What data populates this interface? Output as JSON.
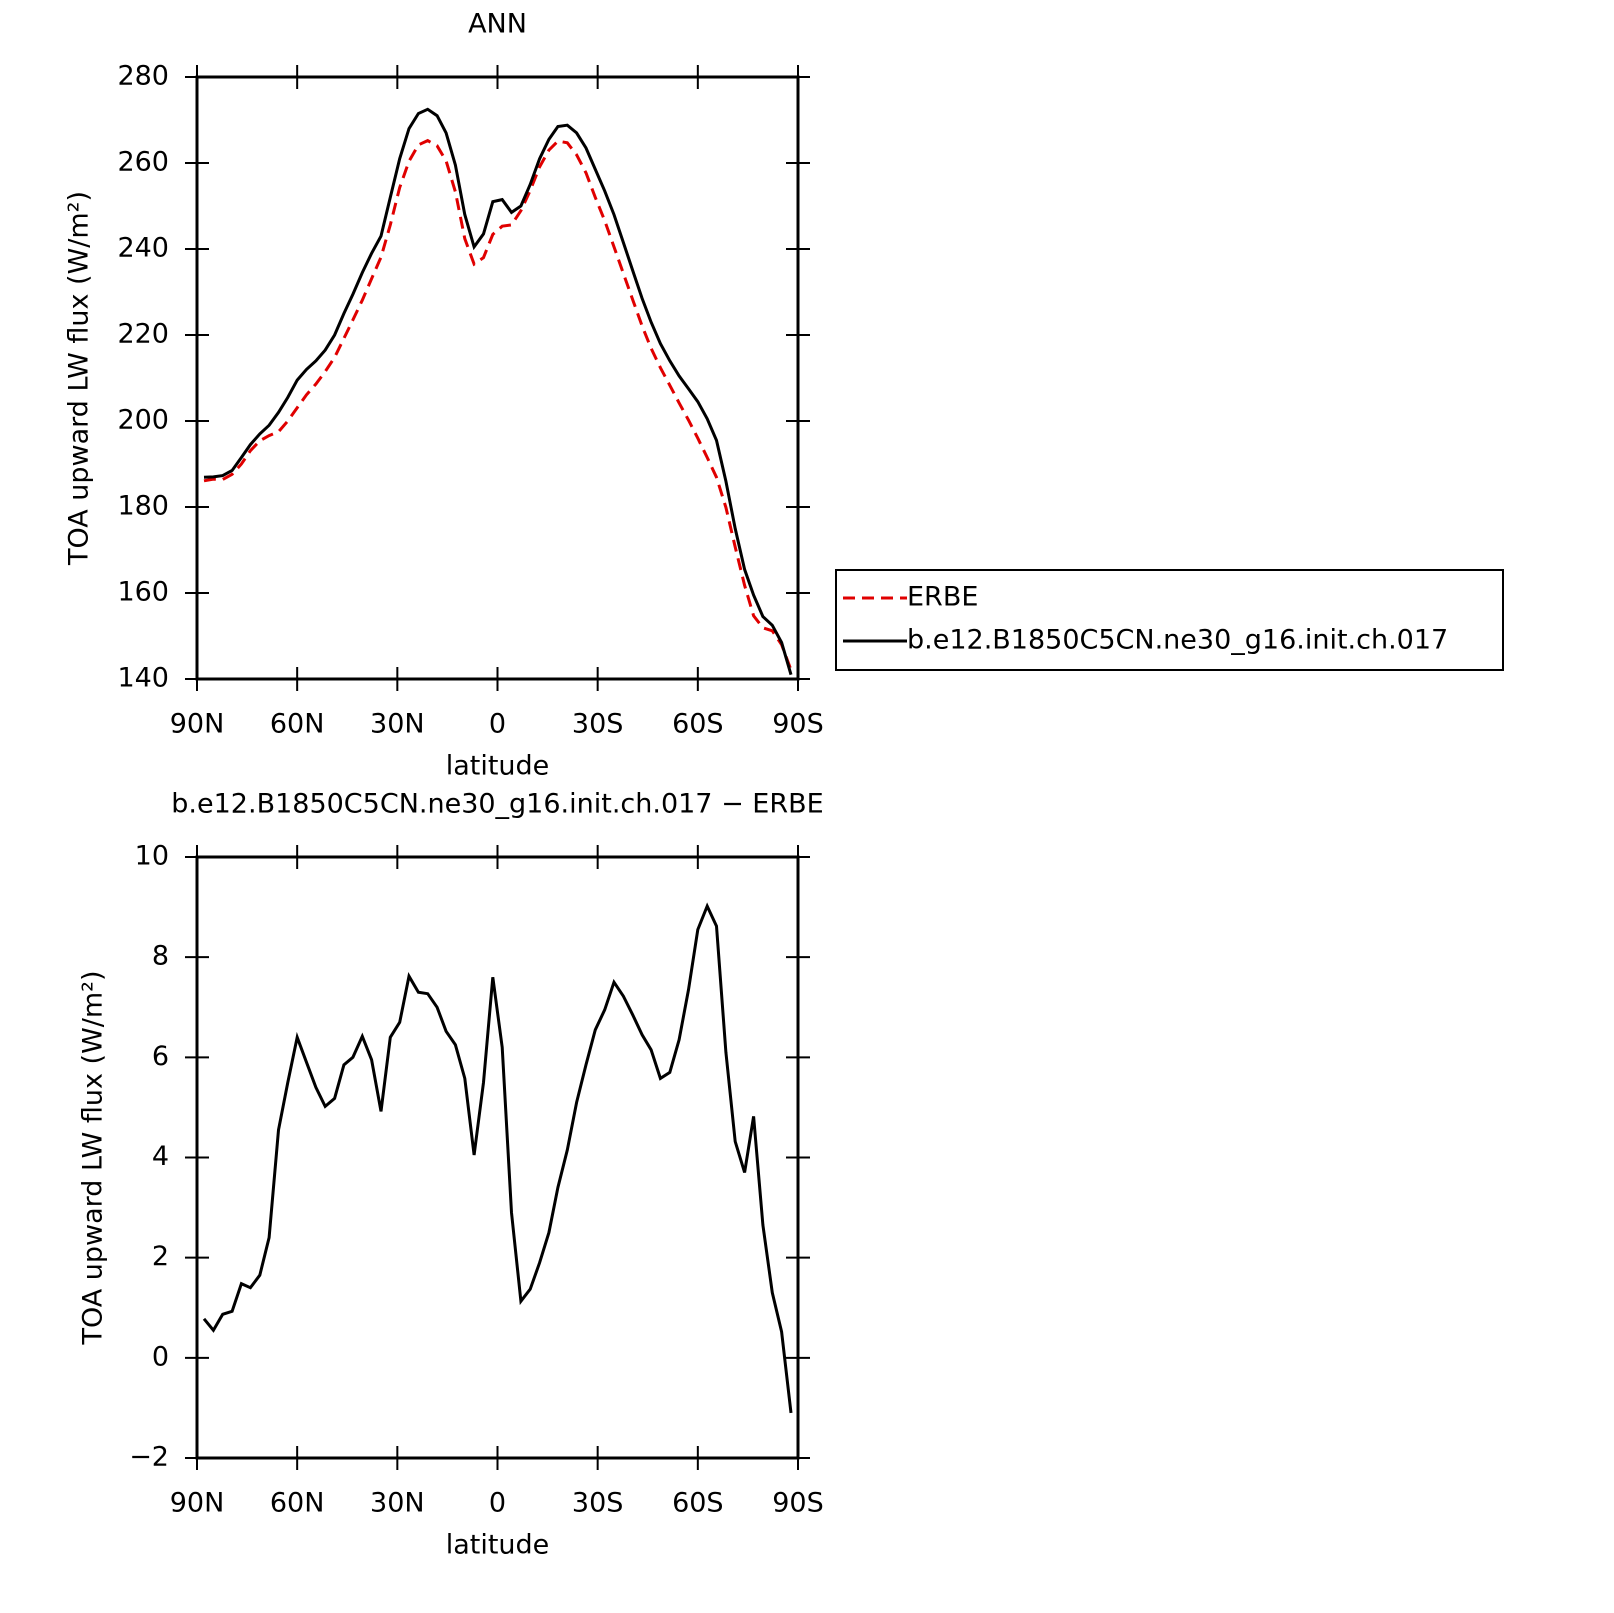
{
  "chart_data": [
    {
      "type": "line",
      "title": "ANN",
      "xlabel": "latitude",
      "ylabel": "TOA upward LW flux (W/m²)",
      "x": [
        87.9,
        85.1,
        82.3,
        79.5,
        76.7,
        74.0,
        71.2,
        68.4,
        65.6,
        62.8,
        60.0,
        57.2,
        54.4,
        51.6,
        48.8,
        46.0,
        43.3,
        40.5,
        37.7,
        34.9,
        32.1,
        29.3,
        26.5,
        23.7,
        20.9,
        18.1,
        15.4,
        12.6,
        9.8,
        7.0,
        4.2,
        1.4,
        -1.4,
        -4.2,
        -7.0,
        -9.8,
        -12.6,
        -15.4,
        -18.1,
        -20.9,
        -23.7,
        -26.5,
        -29.3,
        -32.1,
        -34.9,
        -37.7,
        -40.5,
        -43.3,
        -46.0,
        -48.8,
        -51.6,
        -54.4,
        -57.2,
        -60.0,
        -62.8,
        -65.6,
        -68.4,
        -71.2,
        -74.0,
        -76.7,
        -79.5,
        -82.3,
        -85.1,
        -87.9
      ],
      "series": [
        {
          "name": "ERBE",
          "color": "#e00000",
          "dash": "dashed",
          "values": [
            186.1,
            186.5,
            186.4,
            187.6,
            190.0,
            193.1,
            195.4,
            196.6,
            197.5,
            200.0,
            203.1,
            206.1,
            208.6,
            211.5,
            214.8,
            219.2,
            223.5,
            228.1,
            233.1,
            238.1,
            245.6,
            254.3,
            260.4,
            264.2,
            265.2,
            264.0,
            260.5,
            253.3,
            242.4,
            236.5,
            238.0,
            243.4,
            245.3,
            245.6,
            248.9,
            253.6,
            259.1,
            263.0,
            265.1,
            264.7,
            261.9,
            257.7,
            252.0,
            246.6,
            240.5,
            234.3,
            228.2,
            222.1,
            216.9,
            212.4,
            208.3,
            204.2,
            200.2,
            196.0,
            191.5,
            186.9,
            179.9,
            170.7,
            161.8,
            154.7,
            151.9,
            151.2,
            148.0,
            142.1
          ]
        },
        {
          "name": "b.e12.B1850C5CN.ne30_g16.init.ch.017",
          "color": "#000000",
          "dash": "solid",
          "values": [
            186.9,
            187,
            187.3,
            188.5,
            191.5,
            194.5,
            197,
            199,
            202,
            205.5,
            209.5,
            212,
            214,
            216.5,
            220,
            225,
            229.5,
            234.5,
            239,
            243,
            252,
            261,
            268,
            271.5,
            272.5,
            271,
            267,
            259.5,
            248,
            240.5,
            243.5,
            251,
            251.5,
            248.5,
            250,
            255,
            261,
            265.5,
            268.5,
            268.8,
            267,
            263.5,
            258.5,
            253.5,
            248,
            241.5,
            235,
            228.5,
            223,
            218,
            214,
            210.5,
            207.5,
            204.5,
            200.5,
            195.5,
            186,
            175,
            165.5,
            159.5,
            154.5,
            152.5,
            148.5,
            141
          ]
        }
      ],
      "xlim": [
        90,
        -90
      ],
      "xticks": [
        {
          "value": 90,
          "label": "90N"
        },
        {
          "value": 60,
          "label": "60N"
        },
        {
          "value": 30,
          "label": "30N"
        },
        0,
        {
          "value": -30,
          "label": "30S"
        },
        {
          "value": -60,
          "label": "60S"
        },
        {
          "value": -90,
          "label": "90S"
        }
      ],
      "ylim": [
        140,
        280
      ],
      "yticks": [
        140,
        160,
        180,
        200,
        220,
        240,
        260,
        280
      ],
      "legend": "right"
    },
    {
      "type": "line",
      "title": "b.e12.B1850C5CN.ne30_g16.init.ch.017 − ERBE",
      "xlabel": "latitude",
      "ylabel": "TOA upward LW flux (W/m²)",
      "x": [
        87.9,
        85.1,
        82.3,
        79.5,
        76.7,
        74.0,
        71.2,
        68.4,
        65.6,
        62.8,
        60.0,
        57.2,
        54.4,
        51.6,
        48.8,
        46.0,
        43.3,
        40.5,
        37.7,
        34.9,
        32.1,
        29.3,
        26.5,
        23.7,
        20.9,
        18.1,
        15.4,
        12.6,
        9.8,
        7.0,
        4.2,
        1.4,
        -1.4,
        -4.2,
        -7.0,
        -9.8,
        -12.6,
        -15.4,
        -18.1,
        -20.9,
        -23.7,
        -26.5,
        -29.3,
        -32.1,
        -34.9,
        -37.7,
        -40.5,
        -43.3,
        -46.0,
        -48.8,
        -51.6,
        -54.4,
        -57.2,
        -60.0,
        -62.8,
        -65.6,
        -68.4,
        -71.2,
        -74.0,
        -76.7,
        -79.5,
        -82.3,
        -85.1,
        -87.9
      ],
      "color": "#000000",
      "values": [
        0.78,
        0.55,
        0.87,
        0.93,
        1.48,
        1.4,
        1.65,
        2.4,
        4.55,
        5.5,
        6.4,
        5.9,
        5.4,
        5.02,
        5.18,
        5.85,
        6.0,
        6.42,
        5.95,
        4.92,
        6.4,
        6.7,
        7.62,
        7.3,
        7.27,
        7.0,
        6.52,
        6.25,
        5.58,
        4.05,
        5.5,
        7.6,
        6.2,
        2.9,
        1.13,
        1.37,
        1.9,
        2.5,
        3.4,
        4.15,
        5.1,
        5.85,
        6.55,
        6.95,
        7.5,
        7.22,
        6.85,
        6.45,
        6.15,
        5.58,
        5.7,
        6.35,
        7.35,
        8.55,
        9.02,
        8.62,
        6.1,
        4.32,
        3.7,
        4.82,
        2.65,
        1.3,
        0.52,
        -1.1
      ],
      "xlim": [
        90,
        -90
      ],
      "xticks": [
        {
          "value": 90,
          "label": "90N"
        },
        {
          "value": 60,
          "label": "60N"
        },
        {
          "value": 30,
          "label": "30N"
        },
        0,
        {
          "value": -30,
          "label": "30S"
        },
        {
          "value": -60,
          "label": "60S"
        },
        {
          "value": -90,
          "label": "90S"
        }
      ],
      "ylim": [
        -2,
        10
      ],
      "yticks": [
        {
          "value": -2,
          "label": "−2"
        },
        0,
        2,
        4,
        6,
        8,
        10
      ]
    }
  ]
}
